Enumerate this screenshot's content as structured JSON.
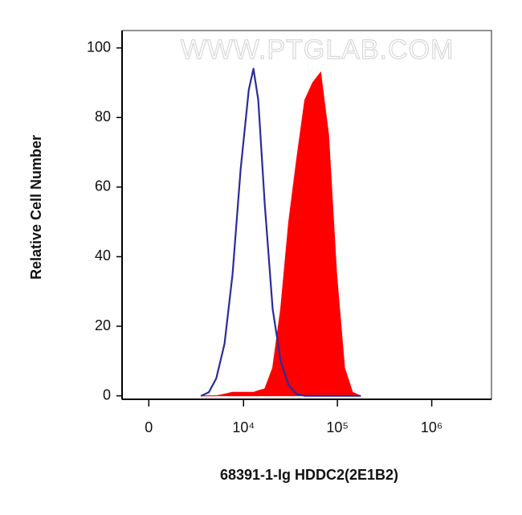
{
  "chart_data": {
    "type": "area",
    "watermark": "WWW.PTGLAB.COM",
    "xlabel": "68391-1-Ig HDDC2(2E1B2)",
    "ylabel": "Relative Cell Number",
    "xscale": "biexponential",
    "xlim": [
      -1400,
      4300000
    ],
    "ylim": [
      -1,
      105
    ],
    "xticks": [
      0,
      {
        "value": 10000,
        "label": "10⁴"
      },
      {
        "value": 100000,
        "label": "10⁵"
      },
      {
        "value": 1000000,
        "label": "10⁶"
      }
    ],
    "yticks": [
      0,
      20,
      40,
      60,
      80,
      100
    ],
    "x": [
      3300,
      4100,
      5000,
      6200,
      7600,
      9300,
      11400,
      12800,
      14400,
      16900,
      20500,
      25000,
      30400,
      36900,
      45000,
      54600,
      66400,
      80700,
      98100,
      119200,
      144800,
      176200
    ],
    "series": [
      {
        "color": "#ff0000",
        "fill": true,
        "values": [
          0,
          0,
          0,
          0.5,
          1,
          1,
          1,
          1,
          1.5,
          2,
          8,
          25,
          50,
          68,
          85,
          90,
          93,
          75,
          35,
          8,
          1,
          0
        ]
      },
      {
        "color": "#2b2b9e",
        "fill": false,
        "values": [
          0,
          1,
          5,
          15,
          35,
          65,
          88,
          94,
          85,
          55,
          25,
          10,
          3,
          0.5,
          0,
          0,
          0,
          0,
          0,
          0,
          0,
          0
        ]
      }
    ]
  }
}
